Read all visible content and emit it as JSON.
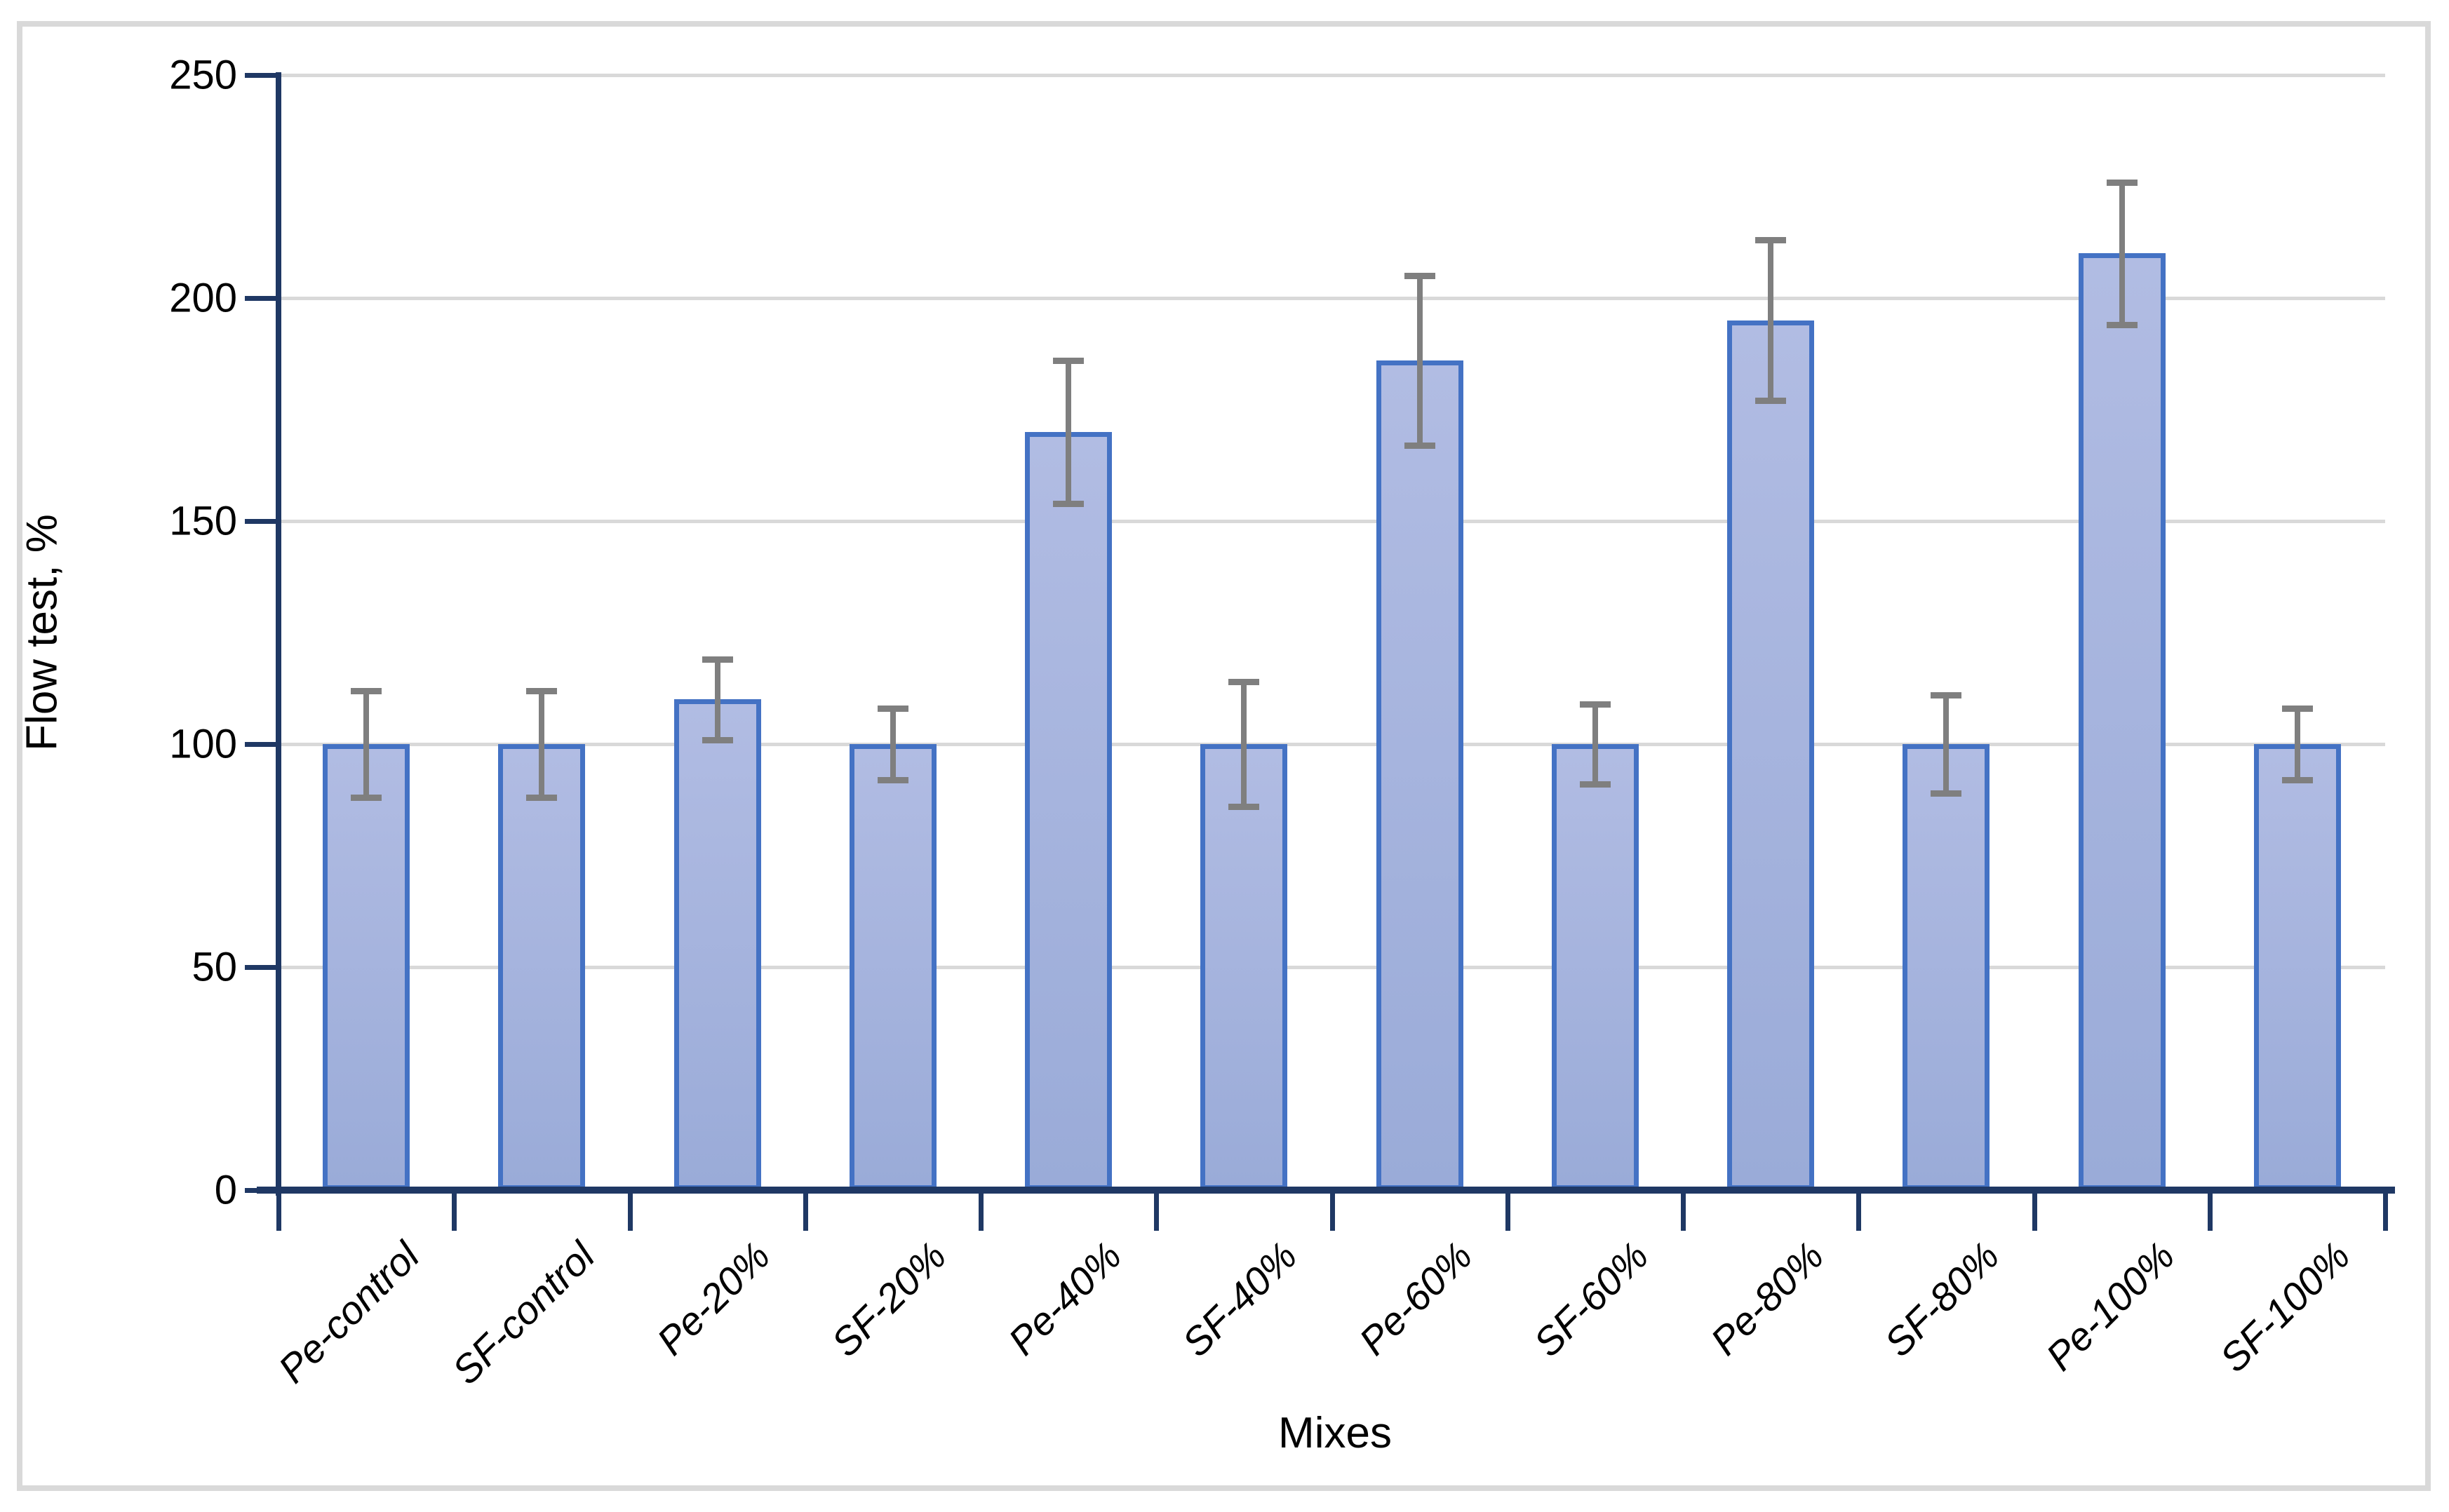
{
  "chart_data": {
    "type": "bar",
    "title": "",
    "xlabel": "Mixes",
    "ylabel": "Flow test, %",
    "ylim": [
      0,
      250
    ],
    "ytick_interval": 50,
    "ytick_labels": [
      "0",
      "50",
      "100",
      "150",
      "200",
      "250"
    ],
    "grid": true,
    "legend": "none",
    "categories": [
      "Pe-control",
      "SF-control",
      "Pe-20%",
      "SF-20%",
      "Pe-40%",
      "SF-40%",
      "Pe-60%",
      "SF-60%",
      "Pe-80%",
      "SF-80%",
      "Pe-100%",
      "SF-100%"
    ],
    "values": [
      100,
      100,
      110,
      100,
      170,
      100,
      186,
      100,
      195,
      100,
      210,
      100
    ],
    "error_bars": [
      12,
      12,
      9,
      8,
      16,
      14,
      19,
      9,
      18,
      11,
      16,
      8
    ],
    "colors": {
      "bar_fill_top": "#b1bce3",
      "bar_fill_bottom": "#9aabd8",
      "bar_border": "#4472c4",
      "error_bar": "#7f7f7f",
      "axis": "#1f3864",
      "gridline": "#d9d9d9",
      "frame_border": "#d9d9d9",
      "text": "#000000"
    }
  }
}
